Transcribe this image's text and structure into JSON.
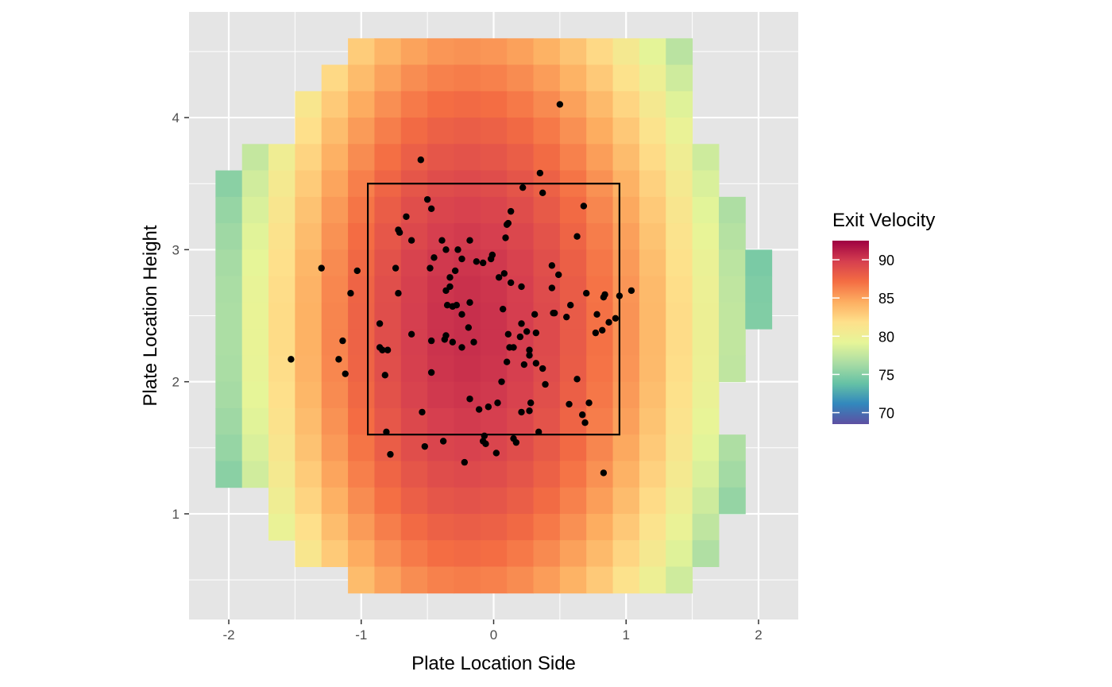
{
  "chart_data": {
    "type": "heatmap",
    "xlabel": "Plate Location Side",
    "ylabel": "Plate Location Height",
    "xlim": [
      -2.3,
      2.3
    ],
    "ylim": [
      0.2,
      4.8
    ],
    "x_ticks": [
      -2,
      -1,
      0,
      1,
      2
    ],
    "x_tick_labels": [
      "-2",
      "-1",
      "0",
      "1",
      "2"
    ],
    "y_ticks": [
      1,
      2,
      3,
      4
    ],
    "y_tick_labels": [
      "1",
      "2",
      "3",
      "4"
    ],
    "grid": true,
    "panel_background": "#e5e5e5",
    "legend": {
      "title": "Exit Velocity",
      "placement": "right",
      "breaks": [
        70,
        75,
        80,
        85,
        90
      ],
      "break_labels": [
        "70",
        "75",
        "80",
        "85",
        "90"
      ],
      "limits": [
        68.5,
        92.5
      ],
      "palette": "Spectral",
      "colors": [
        "#5e4fa2",
        "#3288bd",
        "#66c2a5",
        "#abdda4",
        "#e6f598",
        "#fee08b",
        "#fdae61",
        "#f46d43",
        "#d53e4f",
        "#9e0142"
      ]
    },
    "tile_grid": {
      "x_centers": [
        -2.0,
        -1.8,
        -1.6,
        -1.4,
        -1.2,
        -1.0,
        -0.8,
        -0.6,
        -0.4,
        -0.2,
        0.0,
        0.2,
        0.4,
        0.6,
        0.8,
        1.0,
        1.2,
        1.4,
        1.6,
        1.8,
        2.0
      ],
      "y_centers": [
        0.5,
        0.7,
        0.9,
        1.1,
        1.3,
        1.5,
        1.7,
        1.9,
        2.1,
        2.3,
        2.5,
        2.7,
        2.9,
        3.1,
        3.3,
        3.5,
        3.7,
        3.9,
        4.1,
        4.3,
        4.5
      ],
      "cell_width": 0.2,
      "cell_height": 0.2
    },
    "strike_zone": {
      "x": [
        -0.95,
        0.95
      ],
      "y": [
        1.6,
        3.5
      ]
    },
    "points": [
      [
        0.5,
        4.1
      ],
      [
        -0.55,
        3.68
      ],
      [
        0.35,
        3.58
      ],
      [
        0.22,
        3.47
      ],
      [
        0.37,
        3.43
      ],
      [
        -0.5,
        3.38
      ],
      [
        0.13,
        3.29
      ],
      [
        0.68,
        3.33
      ],
      [
        -0.47,
        3.31
      ],
      [
        -0.66,
        3.25
      ],
      [
        -0.71,
        3.13
      ],
      [
        -0.72,
        3.15
      ],
      [
        0.1,
        3.19
      ],
      [
        0.09,
        3.09
      ],
      [
        -0.62,
        3.07
      ],
      [
        0.63,
        3.1
      ],
      [
        0.11,
        3.2
      ],
      [
        -0.39,
        3.07
      ],
      [
        -0.18,
        3.07
      ],
      [
        -0.27,
        3.0
      ],
      [
        -0.36,
        3.0
      ],
      [
        -0.45,
        2.94
      ],
      [
        -0.24,
        2.93
      ],
      [
        -0.13,
        2.91
      ],
      [
        -0.08,
        2.9
      ],
      [
        -0.02,
        2.93
      ],
      [
        -0.01,
        2.96
      ],
      [
        0.44,
        2.88
      ],
      [
        -0.29,
        2.84
      ],
      [
        -0.48,
        2.86
      ],
      [
        -0.74,
        2.86
      ],
      [
        -1.3,
        2.86
      ],
      [
        -1.03,
        2.84
      ],
      [
        0.49,
        2.81
      ],
      [
        0.04,
        2.79
      ],
      [
        0.08,
        2.82
      ],
      [
        -0.33,
        2.79
      ],
      [
        -0.33,
        2.72
      ],
      [
        0.13,
        2.75
      ],
      [
        0.44,
        2.71
      ],
      [
        -0.36,
        2.69
      ],
      [
        0.21,
        2.72
      ],
      [
        -0.72,
        2.67
      ],
      [
        -1.08,
        2.67
      ],
      [
        0.7,
        2.67
      ],
      [
        0.84,
        2.66
      ],
      [
        0.83,
        2.64
      ],
      [
        0.95,
        2.65
      ],
      [
        1.04,
        2.69
      ],
      [
        -0.18,
        2.6
      ],
      [
        -0.31,
        2.57
      ],
      [
        -0.28,
        2.58
      ],
      [
        -0.35,
        2.58
      ],
      [
        0.07,
        2.55
      ],
      [
        0.58,
        2.58
      ],
      [
        -0.24,
        2.51
      ],
      [
        0.45,
        2.52
      ],
      [
        0.31,
        2.51
      ],
      [
        0.46,
        2.52
      ],
      [
        0.55,
        2.49
      ],
      [
        0.78,
        2.51
      ],
      [
        0.87,
        2.45
      ],
      [
        0.92,
        2.48
      ],
      [
        -0.86,
        2.44
      ],
      [
        0.21,
        2.44
      ],
      [
        -0.19,
        2.41
      ],
      [
        0.82,
        2.39
      ],
      [
        0.77,
        2.37
      ],
      [
        0.25,
        2.38
      ],
      [
        -0.62,
        2.36
      ],
      [
        -0.36,
        2.35
      ],
      [
        -0.37,
        2.32
      ],
      [
        0.11,
        2.36
      ],
      [
        0.32,
        2.37
      ],
      [
        0.2,
        2.34
      ],
      [
        -0.47,
        2.31
      ],
      [
        -0.15,
        2.3
      ],
      [
        -0.31,
        2.3
      ],
      [
        -0.24,
        2.26
      ],
      [
        0.12,
        2.26
      ],
      [
        0.15,
        2.26
      ],
      [
        -1.14,
        2.31
      ],
      [
        -0.86,
        2.26
      ],
      [
        -0.84,
        2.24
      ],
      [
        -0.8,
        2.24
      ],
      [
        0.27,
        2.24
      ],
      [
        0.27,
        2.2
      ],
      [
        -1.17,
        2.17
      ],
      [
        -1.53,
        2.17
      ],
      [
        0.23,
        2.13
      ],
      [
        0.32,
        2.14
      ],
      [
        0.37,
        2.1
      ],
      [
        0.1,
        2.15
      ],
      [
        -0.47,
        2.07
      ],
      [
        -1.12,
        2.06
      ],
      [
        -0.82,
        2.05
      ],
      [
        0.63,
        2.02
      ],
      [
        0.06,
        2.0
      ],
      [
        0.39,
        1.98
      ],
      [
        -0.18,
        1.87
      ],
      [
        0.03,
        1.84
      ],
      [
        0.72,
        1.84
      ],
      [
        0.57,
        1.83
      ],
      [
        0.28,
        1.84
      ],
      [
        0.27,
        1.78
      ],
      [
        -0.11,
        1.79
      ],
      [
        -0.04,
        1.81
      ],
      [
        0.21,
        1.77
      ],
      [
        -0.54,
        1.77
      ],
      [
        0.67,
        1.75
      ],
      [
        0.69,
        1.69
      ],
      [
        -0.81,
        1.62
      ],
      [
        0.34,
        1.62
      ],
      [
        -0.07,
        1.59
      ],
      [
        -0.08,
        1.55
      ],
      [
        0.15,
        1.57
      ],
      [
        0.17,
        1.54
      ],
      [
        -0.38,
        1.55
      ],
      [
        -0.52,
        1.51
      ],
      [
        -0.06,
        1.53
      ],
      [
        0.02,
        1.46
      ],
      [
        -0.78,
        1.45
      ],
      [
        -0.22,
        1.39
      ],
      [
        0.83,
        1.31
      ]
    ]
  }
}
